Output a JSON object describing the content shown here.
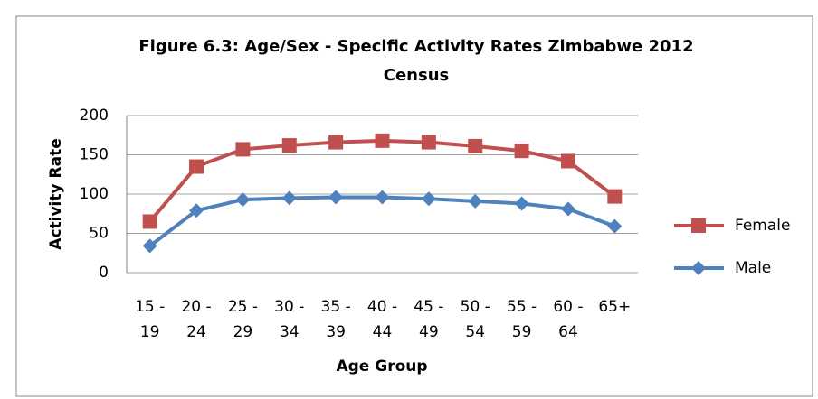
{
  "chart_data": {
    "type": "line",
    "title": "Figure 6.3: Age/Sex - Specific Activity Rates Zimbabwe 2012 Census",
    "x_label": "Age Group",
    "y_label": "Activity Rate",
    "categories": [
      "15 - 19",
      "20 - 24",
      "25 - 29",
      "30 - 34",
      "35 - 39",
      "40 - 44",
      "45 - 49",
      "50 - 54",
      "55 - 59",
      "60 - 64",
      "65+"
    ],
    "series": [
      {
        "name": "Female",
        "color": "#c0504d",
        "marker": "square",
        "values": [
          65,
          135,
          157,
          162,
          166,
          168,
          166,
          161,
          155,
          142,
          97
        ]
      },
      {
        "name": "Male",
        "color": "#4f81bd",
        "marker": "diamond",
        "values": [
          34,
          79,
          93,
          95,
          96,
          96,
          94,
          91,
          88,
          81,
          59
        ]
      }
    ],
    "ylim": [
      0,
      200
    ],
    "yticks": [
      0,
      50,
      100,
      150,
      200
    ],
    "grid": true,
    "legend": "right"
  }
}
